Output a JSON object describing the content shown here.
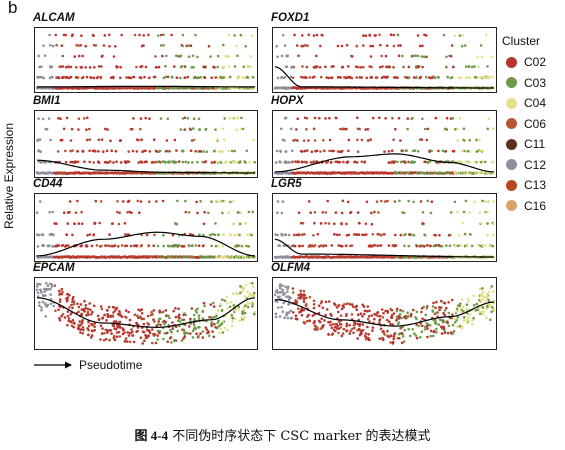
{
  "panel_letter": "b",
  "y_axis_label": "Relative Expression",
  "x_axis_label": "Pseudotime",
  "legend": {
    "title": "Cluster",
    "items": [
      {
        "label": "C02",
        "color": "#b8342f"
      },
      {
        "label": "C03",
        "color": "#6f9a49"
      },
      {
        "label": "C04",
        "color": "#e6df8a"
      },
      {
        "label": "C06",
        "color": "#b85434"
      },
      {
        "label": "C11",
        "color": "#5e2f1d"
      },
      {
        "label": "C12",
        "color": "#8e8e9c"
      },
      {
        "label": "C13",
        "color": "#b6471f"
      },
      {
        "label": "C16",
        "color": "#d9a36a"
      }
    ]
  },
  "caption": {
    "figure_number": "图 4-4",
    "text": "不同伪时序状态下 CSC marker 的表达模式"
  },
  "chart_data": [
    {
      "type": "scatter",
      "gene": "ALCAM",
      "xlabel": "Pseudotime",
      "ylabel": "Relative Expression",
      "trend": [
        [
          0,
          0.02
        ],
        [
          0.5,
          0.03
        ],
        [
          1,
          0.02
        ]
      ],
      "levels": [
        0,
        1,
        2,
        3,
        4,
        5
      ],
      "grid": false
    },
    {
      "type": "scatter",
      "gene": "FOXD1",
      "xlabel": "Pseudotime",
      "ylabel": "Relative Expression",
      "trend": [
        [
          0,
          0.38
        ],
        [
          0.12,
          0.02
        ],
        [
          1,
          0.0
        ]
      ],
      "levels": [
        0,
        1,
        2,
        3,
        4,
        5
      ],
      "grid": false
    },
    {
      "type": "scatter",
      "gene": "BMI1",
      "xlabel": "Pseudotime",
      "ylabel": "Relative Expression",
      "trend": [
        [
          0,
          0.22
        ],
        [
          0.3,
          0.05
        ],
        [
          0.6,
          0.01
        ],
        [
          1,
          0.0
        ]
      ],
      "levels": [
        0,
        1,
        2,
        3,
        4,
        5
      ],
      "grid": false
    },
    {
      "type": "scatter",
      "gene": "HOPX",
      "xlabel": "Pseudotime",
      "ylabel": "Relative Expression",
      "trend": [
        [
          0,
          0.02
        ],
        [
          0.35,
          0.28
        ],
        [
          0.55,
          0.33
        ],
        [
          0.8,
          0.18
        ],
        [
          1,
          0.02
        ]
      ],
      "levels": [
        0,
        1,
        2,
        3,
        4,
        5
      ],
      "grid": false
    },
    {
      "type": "scatter",
      "gene": "CD44",
      "xlabel": "Pseudotime",
      "ylabel": "Relative Expression",
      "trend": [
        [
          0,
          0.02
        ],
        [
          0.3,
          0.3
        ],
        [
          0.55,
          0.42
        ],
        [
          0.75,
          0.35
        ],
        [
          1,
          0.02
        ]
      ],
      "levels": [
        0,
        1,
        2,
        3,
        4,
        5
      ],
      "grid": false
    },
    {
      "type": "scatter",
      "gene": "LGR5",
      "xlabel": "Pseudotime",
      "ylabel": "Relative Expression",
      "trend": [
        [
          0,
          0.3
        ],
        [
          0.12,
          0.05
        ],
        [
          1,
          0.0
        ]
      ],
      "levels": [
        0,
        1,
        2,
        3,
        4,
        5
      ],
      "grid": false
    },
    {
      "type": "scatter",
      "gene": "EPCAM",
      "xlabel": "Pseudotime",
      "ylabel": "Relative Expression",
      "trend": [
        [
          0,
          0.75
        ],
        [
          0.3,
          0.35
        ],
        [
          0.55,
          0.28
        ],
        [
          0.8,
          0.4
        ],
        [
          1,
          0.75
        ]
      ],
      "levels": [],
      "grid": false
    },
    {
      "type": "scatter",
      "gene": "OLFM4",
      "xlabel": "Pseudotime",
      "ylabel": "Relative Expression",
      "trend": [
        [
          0,
          0.72
        ],
        [
          0.3,
          0.4
        ],
        [
          0.55,
          0.3
        ],
        [
          0.8,
          0.45
        ],
        [
          1,
          0.68
        ]
      ],
      "levels": [],
      "grid": false
    }
  ]
}
